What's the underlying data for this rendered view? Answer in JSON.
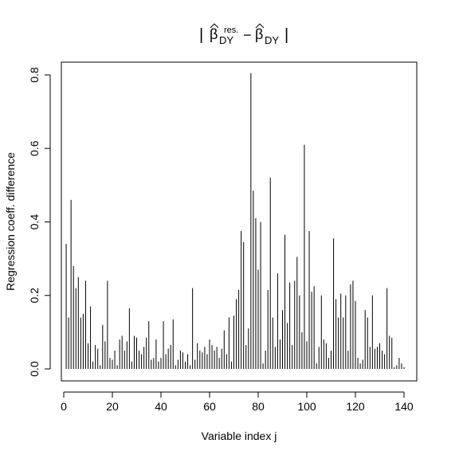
{
  "chart_data": {
    "type": "bar",
    "bar_style": "vertical-lines",
    "title": {
      "base": "β",
      "sub": "DY",
      "sup": "res.",
      "minus": "−",
      "bar": "|"
    },
    "xlabel": "Variable index j",
    "ylabel": "Regression coeff. difference",
    "xlim": [
      1,
      140
    ],
    "ylim": [
      0,
      0.8
    ],
    "xticks": [
      0,
      20,
      40,
      60,
      80,
      100,
      120,
      140
    ],
    "xtick_labels": [
      "0",
      "20",
      "40",
      "60",
      "80",
      "100",
      "120",
      "140"
    ],
    "yticks": [
      0.0,
      0.2,
      0.4,
      0.6,
      0.8
    ],
    "ytick_labels": [
      "0.0",
      "0.2",
      "0.4",
      "0.6",
      "0.8"
    ],
    "grid": false,
    "legend": "none",
    "color": "#000000",
    "x": [
      1,
      2,
      3,
      4,
      5,
      6,
      7,
      8,
      9,
      10,
      11,
      12,
      13,
      14,
      15,
      16,
      17,
      18,
      19,
      20,
      21,
      22,
      23,
      24,
      25,
      26,
      27,
      28,
      29,
      30,
      31,
      32,
      33,
      34,
      35,
      36,
      37,
      38,
      39,
      40,
      41,
      42,
      43,
      44,
      45,
      46,
      47,
      48,
      49,
      50,
      51,
      52,
      53,
      54,
      55,
      56,
      57,
      58,
      59,
      60,
      61,
      62,
      63,
      64,
      65,
      66,
      67,
      68,
      69,
      70,
      71,
      72,
      73,
      74,
      75,
      76,
      77,
      78,
      79,
      80,
      81,
      82,
      83,
      84,
      85,
      86,
      87,
      88,
      89,
      90,
      91,
      92,
      93,
      94,
      95,
      96,
      97,
      98,
      99,
      100,
      101,
      102,
      103,
      104,
      105,
      106,
      107,
      108,
      109,
      110,
      111,
      112,
      113,
      114,
      115,
      116,
      117,
      118,
      119,
      120,
      121,
      122,
      123,
      124,
      125,
      126,
      127,
      128,
      129,
      130,
      131,
      132,
      133,
      134,
      135,
      136,
      137,
      138,
      139,
      140
    ],
    "values": [
      0.34,
      0.14,
      0.46,
      0.28,
      0.22,
      0.25,
      0.14,
      0.15,
      0.24,
      0.07,
      0.17,
      0.02,
      0.065,
      0.055,
      0.01,
      0.12,
      0.075,
      0.24,
      0.03,
      0.025,
      0.05,
      0.01,
      0.08,
      0.09,
      0.05,
      0.075,
      0.165,
      0.02,
      0.09,
      0.085,
      0.05,
      0.04,
      0.06,
      0.085,
      0.13,
      0.025,
      0.03,
      0.08,
      0.02,
      0.03,
      0.13,
      0.04,
      0.055,
      0.065,
      0.135,
      0.01,
      0.025,
      0.05,
      0.045,
      0.02,
      0.04,
      0.01,
      0.22,
      0.025,
      0.07,
      0.05,
      0.045,
      0.06,
      0.04,
      0.08,
      0.065,
      0.05,
      0.06,
      0.03,
      0.055,
      0.105,
      0.04,
      0.14,
      0.02,
      0.145,
      0.19,
      0.215,
      0.375,
      0.345,
      0.065,
      0.11,
      0.805,
      0.485,
      0.41,
      0.27,
      0.4,
      0.015,
      0.05,
      0.215,
      0.52,
      0.14,
      0.06,
      0.26,
      0.08,
      0.16,
      0.365,
      0.125,
      0.235,
      0.065,
      0.24,
      0.305,
      0.2,
      0.1,
      0.61,
      0.075,
      0.375,
      0.21,
      0.225,
      0.015,
      0.06,
      0.2,
      0.08,
      0.07,
      0.03,
      0.05,
      0.355,
      0.19,
      0.14,
      0.205,
      0.14,
      0.2,
      0.05,
      0.23,
      0.24,
      0.185,
      0.03,
      0.015,
      0.025,
      0.16,
      0.14,
      0.06,
      0.2,
      0.055,
      0.06,
      0.07,
      0.05,
      0.04,
      0.22,
      0.09,
      0.085,
      0.005,
      0.01,
      0.03,
      0.015,
      0.005
    ]
  }
}
